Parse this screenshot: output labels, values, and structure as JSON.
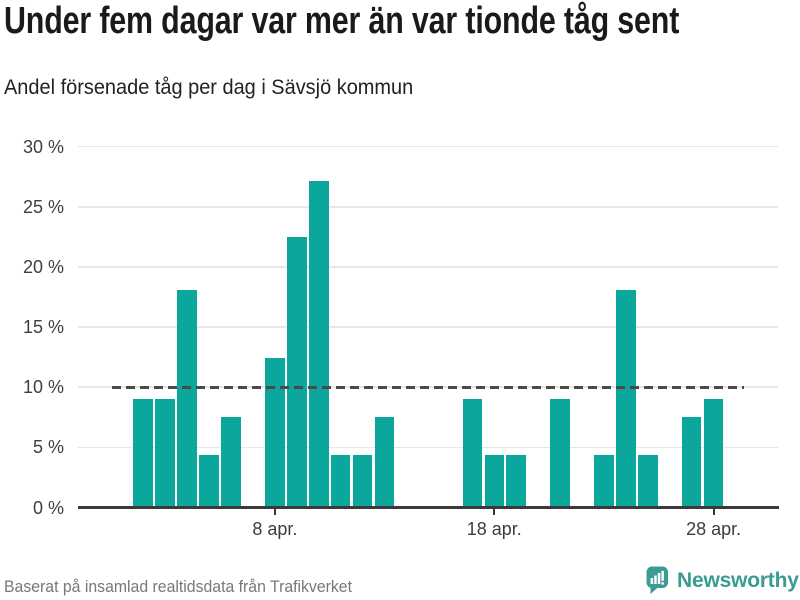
{
  "page": {
    "title": "Under fem dagar var mer än var tionde tåg sent",
    "subtitle": "Andel försenade tåg per dag i Sävsjö kommun"
  },
  "chart_data": {
    "type": "bar",
    "title": "Under fem dagar var mer än var tionde tåg sent",
    "subtitle": "Andel försenade tåg per dag i Sävsjö kommun",
    "unit": "%",
    "ylim": [
      0,
      30
    ],
    "grid": true,
    "yticks": [
      {
        "value": 0,
        "label": "0 %"
      },
      {
        "value": 5,
        "label": "5 %"
      },
      {
        "value": 10,
        "label": "10 %"
      },
      {
        "value": 15,
        "label": "15 %"
      },
      {
        "value": 20,
        "label": "20 %"
      },
      {
        "value": 25,
        "label": "25 %"
      },
      {
        "value": 30,
        "label": "30 %"
      }
    ],
    "xticks": [
      {
        "day": 8,
        "label": "8 apr."
      },
      {
        "day": 18,
        "label": "18 apr."
      },
      {
        "day": 28,
        "label": "28 apr."
      }
    ],
    "reference_line_value": 10,
    "categories": [
      "1 apr.",
      "2 apr.",
      "3 apr.",
      "4 apr.",
      "5 apr.",
      "6 apr.",
      "7 apr.",
      "8 apr.",
      "9 apr.",
      "10 apr.",
      "11 apr.",
      "12 apr.",
      "13 apr.",
      "14 apr.",
      "15 apr.",
      "16 apr.",
      "17 apr.",
      "18 apr.",
      "19 apr.",
      "20 apr.",
      "21 apr.",
      "22 apr.",
      "23 apr.",
      "24 apr.",
      "25 apr.",
      "26 apr.",
      "27 apr.",
      "28 apr.",
      "29 apr."
    ],
    "values": [
      null,
      9,
      9,
      18.1,
      4.4,
      7.5,
      null,
      12.4,
      22.5,
      27.1,
      4.4,
      4.4,
      7.5,
      null,
      null,
      null,
      9,
      4.4,
      4.4,
      null,
      9,
      null,
      4.4,
      18.1,
      4.4,
      null,
      7.5,
      9,
      null
    ],
    "colors": {
      "bar": "#0ba79d",
      "grid": "#e7e7e7",
      "axis": "#3a3a3a",
      "reference": "#4a4a4a",
      "tick_label": "#3d3d3d",
      "logo": "#3a9c95"
    }
  },
  "footer": {
    "source": "Baserat på insamlad realtidsdata från Trafikverket",
    "logo_text": "Newsworthy"
  }
}
